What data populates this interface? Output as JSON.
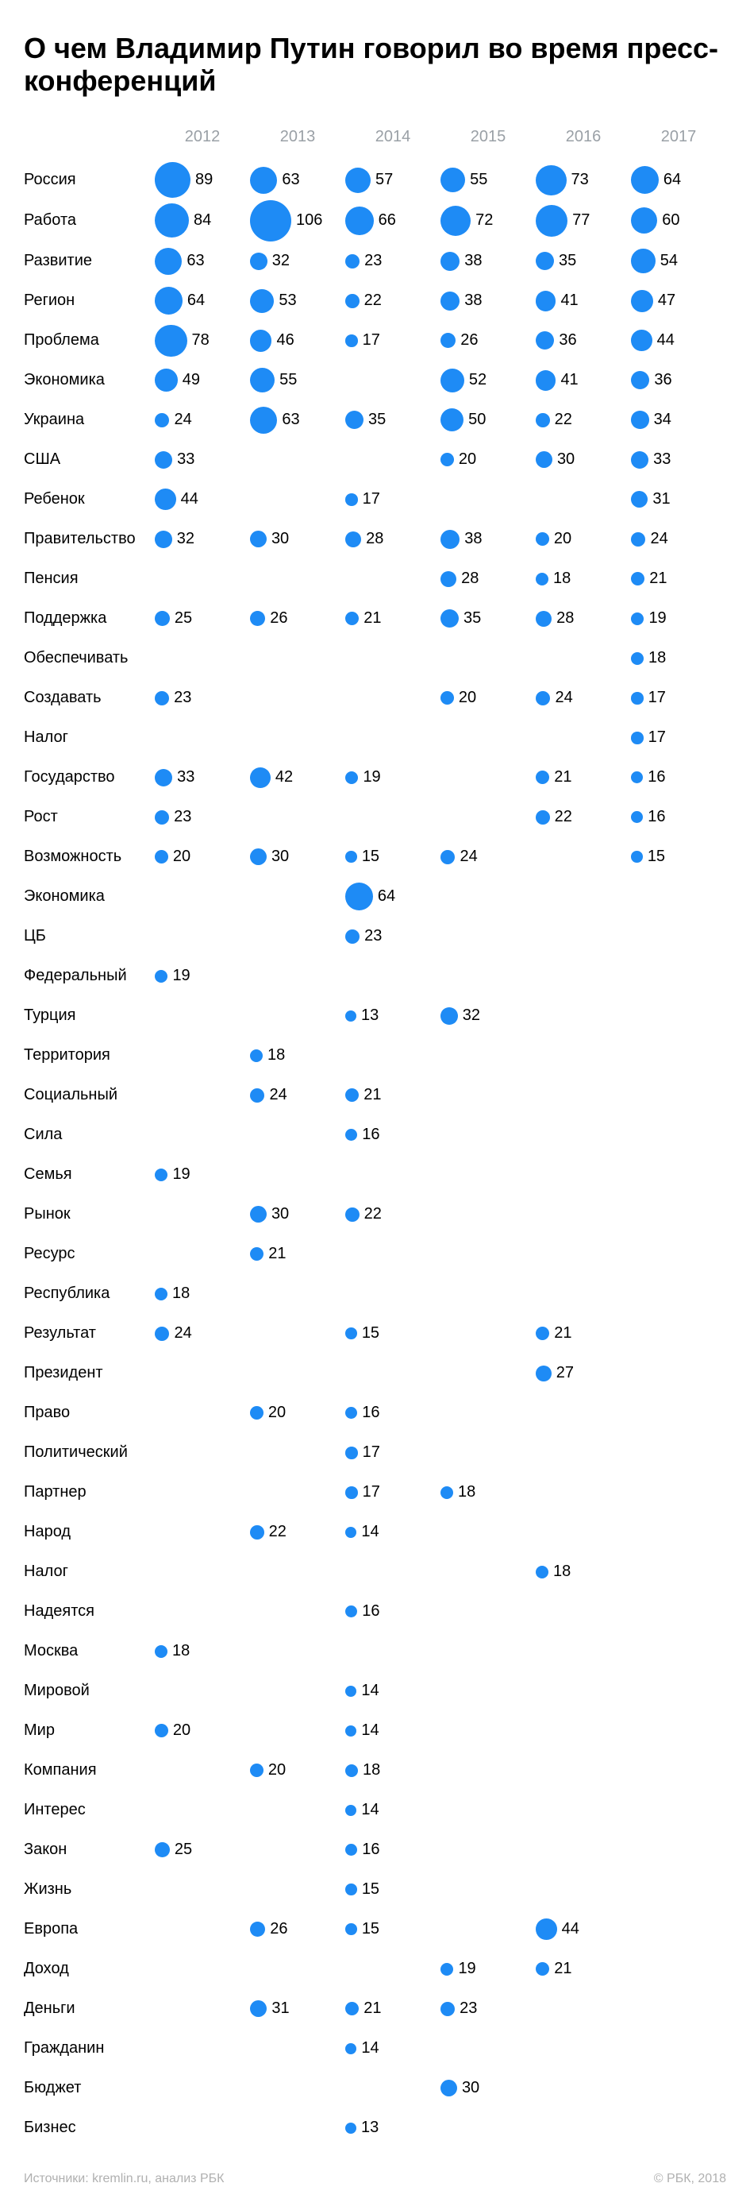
{
  "title": "О чем Владимир Путин говорил во время пресс-конференций",
  "source_label": "Источники: kremlin.ru, анализ РБК",
  "copyright": "© РБК, 2018",
  "colors": {
    "bubble": "#1e8bf5",
    "text": "#000000",
    "muted": "#9aa0a6",
    "background": "#ffffff"
  },
  "bubble_scale": {
    "min_radius": 7,
    "max_radius": 26,
    "min_value": 13,
    "max_value": 106
  },
  "years": [
    "2012",
    "2013",
    "2014",
    "2015",
    "2016",
    "2017"
  ],
  "rows": [
    {
      "label": "Россия",
      "v": [
        89,
        63,
        57,
        55,
        73,
        64
      ]
    },
    {
      "label": "Работа",
      "v": [
        84,
        106,
        66,
        72,
        77,
        60
      ]
    },
    {
      "label": "Развитие",
      "v": [
        63,
        32,
        23,
        38,
        35,
        54
      ]
    },
    {
      "label": "Регион",
      "v": [
        64,
        53,
        22,
        38,
        41,
        47
      ]
    },
    {
      "label": "Проблема",
      "v": [
        78,
        46,
        17,
        26,
        36,
        44
      ]
    },
    {
      "label": "Экономика",
      "v": [
        49,
        55,
        null,
        52,
        41,
        36
      ]
    },
    {
      "label": "Украина",
      "v": [
        24,
        63,
        35,
        50,
        22,
        34
      ]
    },
    {
      "label": "США",
      "v": [
        33,
        null,
        null,
        20,
        30,
        33
      ]
    },
    {
      "label": "Ребенок",
      "v": [
        44,
        null,
        17,
        null,
        null,
        31
      ]
    },
    {
      "label": "Правительство",
      "v": [
        32,
        30,
        28,
        38,
        20,
        24
      ]
    },
    {
      "label": "Пенсия",
      "v": [
        null,
        null,
        null,
        28,
        18,
        21
      ]
    },
    {
      "label": "Поддержка",
      "v": [
        25,
        26,
        21,
        35,
        28,
        19
      ]
    },
    {
      "label": "Обеспечивать",
      "v": [
        null,
        null,
        null,
        null,
        null,
        18
      ]
    },
    {
      "label": "Создавать",
      "v": [
        23,
        null,
        null,
        20,
        24,
        17
      ]
    },
    {
      "label": "Налог",
      "v": [
        null,
        null,
        null,
        null,
        null,
        17
      ]
    },
    {
      "label": "Государство",
      "v": [
        33,
        42,
        19,
        null,
        21,
        16
      ]
    },
    {
      "label": "Рост",
      "v": [
        23,
        null,
        null,
        null,
        22,
        16
      ]
    },
    {
      "label": "Возможность",
      "v": [
        20,
        30,
        15,
        24,
        null,
        15
      ]
    },
    {
      "label": "Экономика",
      "v": [
        null,
        null,
        64,
        null,
        null,
        null
      ]
    },
    {
      "label": "ЦБ",
      "v": [
        null,
        null,
        23,
        null,
        null,
        null
      ]
    },
    {
      "label": "Федеральный",
      "v": [
        19,
        null,
        null,
        null,
        null,
        null
      ]
    },
    {
      "label": "Турция",
      "v": [
        null,
        null,
        13,
        32,
        null,
        null
      ]
    },
    {
      "label": "Территория",
      "v": [
        null,
        18,
        null,
        null,
        null,
        null
      ]
    },
    {
      "label": "Социальный",
      "v": [
        null,
        24,
        21,
        null,
        null,
        null
      ]
    },
    {
      "label": "Сила",
      "v": [
        null,
        null,
        16,
        null,
        null,
        null
      ]
    },
    {
      "label": "Семья",
      "v": [
        19,
        null,
        null,
        null,
        null,
        null
      ]
    },
    {
      "label": "Рынок",
      "v": [
        null,
        30,
        22,
        null,
        null,
        null
      ]
    },
    {
      "label": "Ресурс",
      "v": [
        null,
        21,
        null,
        null,
        null,
        null
      ]
    },
    {
      "label": "Республика",
      "v": [
        18,
        null,
        null,
        null,
        null,
        null
      ]
    },
    {
      "label": "Результат",
      "v": [
        24,
        null,
        15,
        null,
        21,
        null
      ]
    },
    {
      "label": "Президент",
      "v": [
        null,
        null,
        null,
        null,
        27,
        null
      ]
    },
    {
      "label": "Право",
      "v": [
        null,
        20,
        16,
        null,
        null,
        null
      ]
    },
    {
      "label": "Политический",
      "v": [
        null,
        null,
        17,
        null,
        null,
        null
      ]
    },
    {
      "label": "Партнер",
      "v": [
        null,
        null,
        17,
        18,
        null,
        null
      ]
    },
    {
      "label": "Народ",
      "v": [
        null,
        22,
        14,
        null,
        null,
        null
      ]
    },
    {
      "label": "Налог",
      "v": [
        null,
        null,
        null,
        null,
        18,
        null
      ]
    },
    {
      "label": "Надеятся",
      "v": [
        null,
        null,
        16,
        null,
        null,
        null
      ]
    },
    {
      "label": "Москва",
      "v": [
        18,
        null,
        null,
        null,
        null,
        null
      ]
    },
    {
      "label": "Мировой",
      "v": [
        null,
        null,
        14,
        null,
        null,
        null
      ]
    },
    {
      "label": "Мир",
      "v": [
        20,
        null,
        14,
        null,
        null,
        null
      ]
    },
    {
      "label": "Компания",
      "v": [
        null,
        20,
        18,
        null,
        null,
        null
      ]
    },
    {
      "label": "Интерес",
      "v": [
        null,
        null,
        14,
        null,
        null,
        null
      ]
    },
    {
      "label": "Закон",
      "v": [
        25,
        null,
        16,
        null,
        null,
        null
      ]
    },
    {
      "label": "Жизнь",
      "v": [
        null,
        null,
        15,
        null,
        null,
        null
      ]
    },
    {
      "label": "Европа",
      "v": [
        null,
        26,
        15,
        null,
        44,
        null
      ]
    },
    {
      "label": "Доход",
      "v": [
        null,
        null,
        null,
        19,
        21,
        null
      ]
    },
    {
      "label": "Деньги",
      "v": [
        null,
        31,
        21,
        23,
        null,
        null
      ]
    },
    {
      "label": "Гражданин",
      "v": [
        null,
        null,
        14,
        null,
        null,
        null
      ]
    },
    {
      "label": "Бюджет",
      "v": [
        null,
        null,
        null,
        30,
        null,
        null
      ]
    },
    {
      "label": "Бизнес",
      "v": [
        null,
        null,
        13,
        null,
        null,
        null
      ]
    }
  ]
}
